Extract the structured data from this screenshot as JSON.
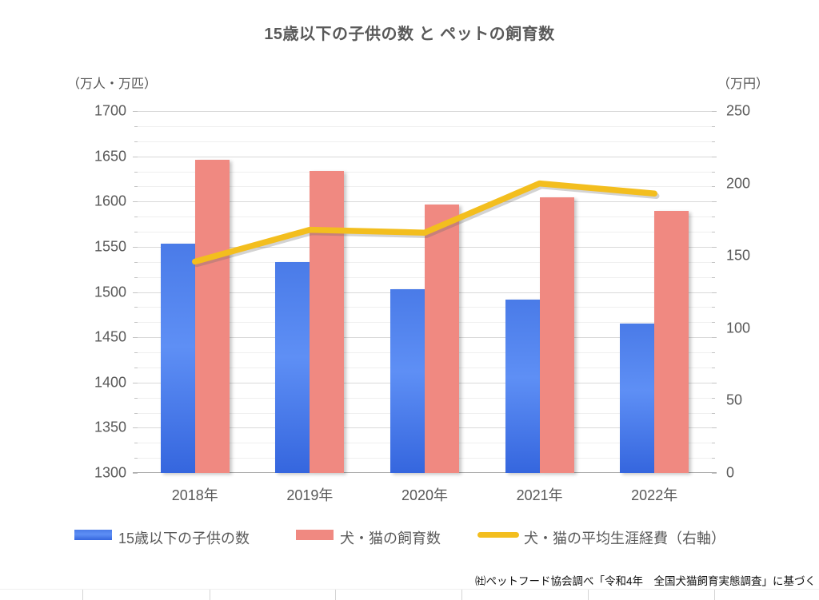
{
  "title": "15歳以下の子供の数 と ペットの飼育数",
  "left_axis": {
    "unit_label": "（万人・万匹）",
    "ticks": [
      "1700",
      "1650",
      "1600",
      "1550",
      "1500",
      "1450",
      "1400",
      "1350",
      "1300"
    ],
    "min": 1300,
    "max": 1700,
    "major_step": 50
  },
  "right_axis": {
    "unit_label": "（万円）",
    "ticks": [
      "250",
      "200",
      "150",
      "100",
      "50",
      "0"
    ],
    "min": 0,
    "max": 250,
    "major_step": 50
  },
  "chart_data": {
    "type": "bar+line combo",
    "categories": [
      "2018年",
      "2019年",
      "2020年",
      "2021年",
      "2022年"
    ],
    "series": [
      {
        "name": "15歳以下の子供の数",
        "type": "bar",
        "axis": "left",
        "color": "#4a7be8",
        "values": [
          1553,
          1533,
          1503,
          1492,
          1465
        ]
      },
      {
        "name": "犬・猫の飼育数",
        "type": "bar",
        "axis": "left",
        "color": "#f08981",
        "values": [
          1646,
          1634,
          1597,
          1605,
          1590
        ]
      },
      {
        "name": "犬・猫の平均生涯経費（右軸）",
        "type": "line",
        "axis": "right",
        "color": "#f3be1e",
        "values": [
          146,
          168,
          166,
          200,
          193
        ]
      }
    ],
    "title": "15歳以下の子供の数 と ペットの飼育数",
    "left_ylim": [
      1300,
      1700
    ],
    "right_ylim": [
      0,
      250
    ],
    "grid": true,
    "legend_position": "bottom"
  },
  "legend": {
    "items": [
      {
        "label": "15歳以下の子供の数",
        "swatch": "blue-bar-swatch"
      },
      {
        "label": "犬・猫の飼育数",
        "swatch": "pink-bar-swatch"
      },
      {
        "label": "犬・猫の平均生涯経費（右軸）",
        "swatch": "yellow-line-swatch"
      }
    ]
  },
  "footer_note": "㈳ペットフード協会調べ「令和4年　全国犬猫飼育実態調査」に基づく"
}
